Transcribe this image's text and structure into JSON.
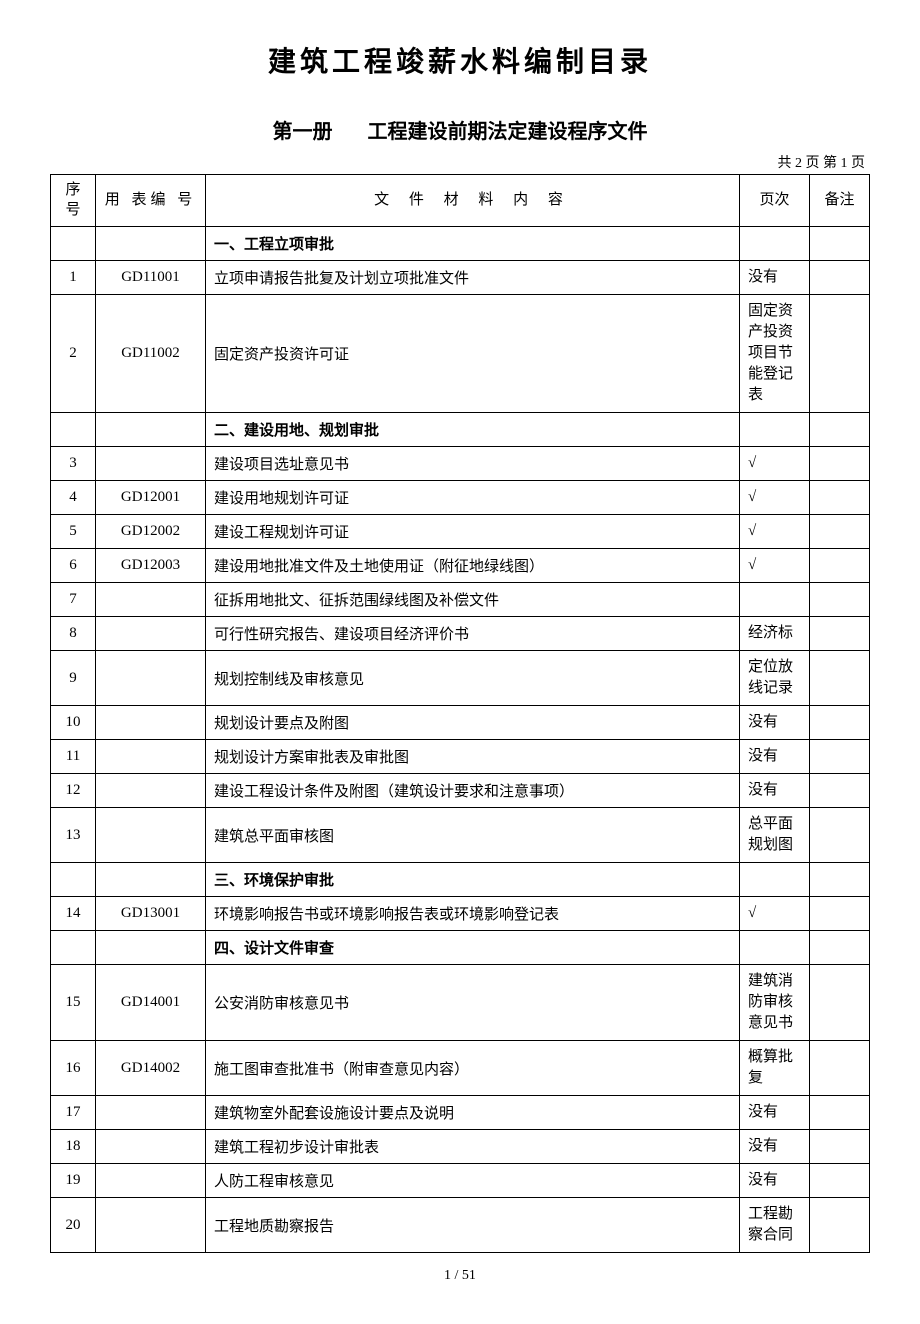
{
  "main_title": "建筑工程竣薪水料编制目录",
  "volume_label": "第一册",
  "sub_title": "工程建设前期法定建设程序文件",
  "page_info": "共 2 页 第 1 页",
  "headers": {
    "seq": "序号",
    "code": "用 表编 号",
    "content": "文 件 材 料 内 容",
    "page": "页次",
    "remark": "备注"
  },
  "rows": [
    {
      "seq": "",
      "code": "",
      "content": "一、工程立项审批",
      "page": "",
      "remark": "",
      "section": true
    },
    {
      "seq": "1",
      "code": "GD11001",
      "content": "立项申请报告批复及计划立项批准文件",
      "page": "没有",
      "remark": ""
    },
    {
      "seq": "2",
      "code": "GD11002",
      "content": "固定资产投资许可证",
      "page": "固定资产投资项目节能登记表",
      "remark": ""
    },
    {
      "seq": "",
      "code": "",
      "content": "二、建设用地、规划审批",
      "page": "",
      "remark": "",
      "section": true
    },
    {
      "seq": "3",
      "code": "",
      "content": "建设项目选址意见书",
      "page": "√",
      "remark": ""
    },
    {
      "seq": "4",
      "code": "GD12001",
      "content": "建设用地规划许可证",
      "page": "√",
      "remark": ""
    },
    {
      "seq": "5",
      "code": "GD12002",
      "content": "建设工程规划许可证",
      "page": "√",
      "remark": ""
    },
    {
      "seq": "6",
      "code": "GD12003",
      "content": "建设用地批准文件及土地使用证（附征地绿线图）",
      "page": "√",
      "remark": ""
    },
    {
      "seq": "7",
      "code": "",
      "content": "征拆用地批文、征拆范围绿线图及补偿文件",
      "page": "",
      "remark": ""
    },
    {
      "seq": "8",
      "code": "",
      "content": "可行性研究报告、建设项目经济评价书",
      "page": "经济标",
      "remark": ""
    },
    {
      "seq": "9",
      "code": "",
      "content": "规划控制线及审核意见",
      "page": "定位放线记录",
      "remark": ""
    },
    {
      "seq": "10",
      "code": "",
      "content": "规划设计要点及附图",
      "page": "没有",
      "remark": ""
    },
    {
      "seq": "11",
      "code": "",
      "content": "规划设计方案审批表及审批图",
      "page": "没有",
      "remark": ""
    },
    {
      "seq": "12",
      "code": "",
      "content": "建设工程设计条件及附图（建筑设计要求和注意事项）",
      "page": "没有",
      "remark": ""
    },
    {
      "seq": "13",
      "code": "",
      "content": "建筑总平面审核图",
      "page": "总平面规划图",
      "remark": ""
    },
    {
      "seq": "",
      "code": "",
      "content": "三、环境保护审批",
      "page": "",
      "remark": "",
      "section": true
    },
    {
      "seq": "14",
      "code": "GD13001",
      "content": "环境影响报告书或环境影响报告表或环境影响登记表",
      "page": "√",
      "remark": ""
    },
    {
      "seq": "",
      "code": "",
      "content": "四、设计文件审查",
      "page": "",
      "remark": "",
      "section": true
    },
    {
      "seq": "15",
      "code": "GD14001",
      "content": "公安消防审核意见书",
      "page": "建筑消防审核意见书",
      "remark": ""
    },
    {
      "seq": "16",
      "code": "GD14002",
      "content": "施工图审查批准书（附审查意见内容）",
      "page": "概算批复",
      "remark": ""
    },
    {
      "seq": "17",
      "code": "",
      "content": "建筑物室外配套设施设计要点及说明",
      "page": "没有",
      "remark": ""
    },
    {
      "seq": "18",
      "code": "",
      "content": "建筑工程初步设计审批表",
      "page": "没有",
      "remark": ""
    },
    {
      "seq": "19",
      "code": "",
      "content": "人防工程审核意见",
      "page": "没有",
      "remark": ""
    },
    {
      "seq": "20",
      "code": "",
      "content": "工程地质勘察报告",
      "page": "工程勘察合同",
      "remark": ""
    }
  ],
  "footer": "1 / 51"
}
